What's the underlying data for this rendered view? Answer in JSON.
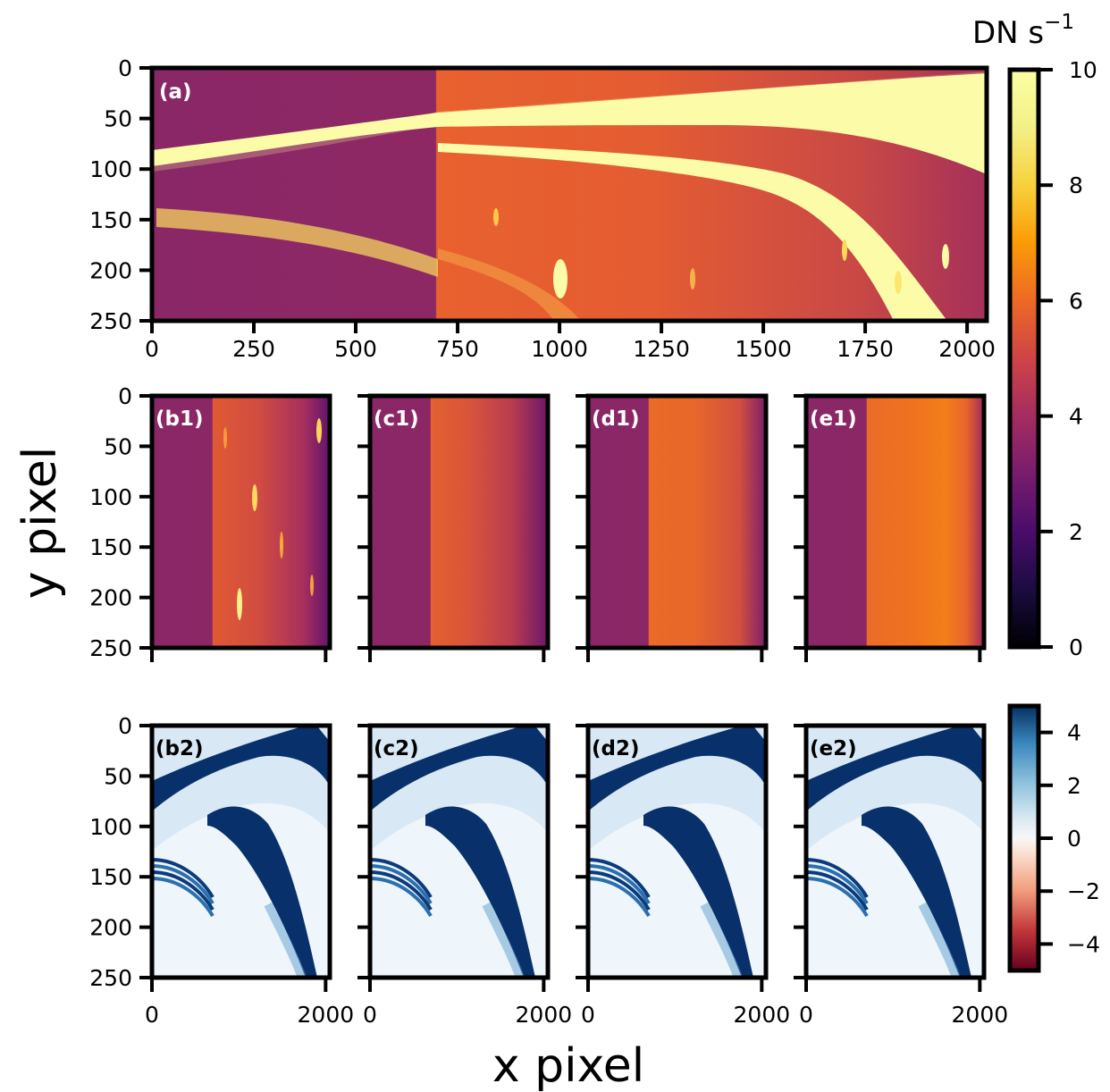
{
  "figure": {
    "xlabel": "x pixel",
    "ylabel": "y pixel",
    "colorbar_top_label_base": "DN s",
    "colorbar_top_label_exp": "−1"
  },
  "chart_data": [
    {
      "type": "heatmap",
      "panel": "(a)",
      "colormap": "inferno",
      "xlim": [
        0,
        2048
      ],
      "ylim": [
        250,
        0
      ],
      "xticks": [
        "0",
        "250",
        "500",
        "750",
        "1000",
        "1250",
        "1500",
        "1750",
        "2000"
      ],
      "yticks": [
        "0",
        "50",
        "100",
        "150",
        "200",
        "250"
      ]
    },
    {
      "type": "heatmap",
      "panel": "(b1)",
      "colormap": "inferno",
      "xticks": [
        "0",
        "2000"
      ],
      "yticks": [
        "0",
        "50",
        "100",
        "150",
        "200",
        "250"
      ]
    },
    {
      "type": "heatmap",
      "panel": "(c1)",
      "colormap": "inferno",
      "xticks": [
        "0",
        "2000"
      ]
    },
    {
      "type": "heatmap",
      "panel": "(d1)",
      "colormap": "inferno",
      "xticks": [
        "0",
        "2000"
      ]
    },
    {
      "type": "heatmap",
      "panel": "(e1)",
      "colormap": "inferno",
      "xticks": [
        "0",
        "2000"
      ]
    },
    {
      "type": "heatmap",
      "panel": "(b2)",
      "colormap": "RdBu",
      "xticks": [
        "0",
        "2000"
      ],
      "yticks": [
        "0",
        "50",
        "100",
        "150",
        "200",
        "250"
      ]
    },
    {
      "type": "heatmap",
      "panel": "(c2)",
      "colormap": "RdBu",
      "xticks": [
        "0",
        "2000"
      ]
    },
    {
      "type": "heatmap",
      "panel": "(d2)",
      "colormap": "RdBu",
      "xticks": [
        "0",
        "2000"
      ]
    },
    {
      "type": "heatmap",
      "panel": "(e2)",
      "colormap": "RdBu",
      "xticks": [
        "0",
        "2000"
      ]
    },
    {
      "type": "colorbar",
      "colormap": "inferno",
      "range": [
        0,
        10
      ],
      "ticks": [
        "0",
        "2",
        "4",
        "6",
        "8",
        "10"
      ]
    },
    {
      "type": "colorbar",
      "colormap": "RdBu",
      "range": [
        -5,
        5
      ],
      "ticks": [
        "−4",
        "−2",
        "0",
        "2",
        "4"
      ]
    }
  ]
}
